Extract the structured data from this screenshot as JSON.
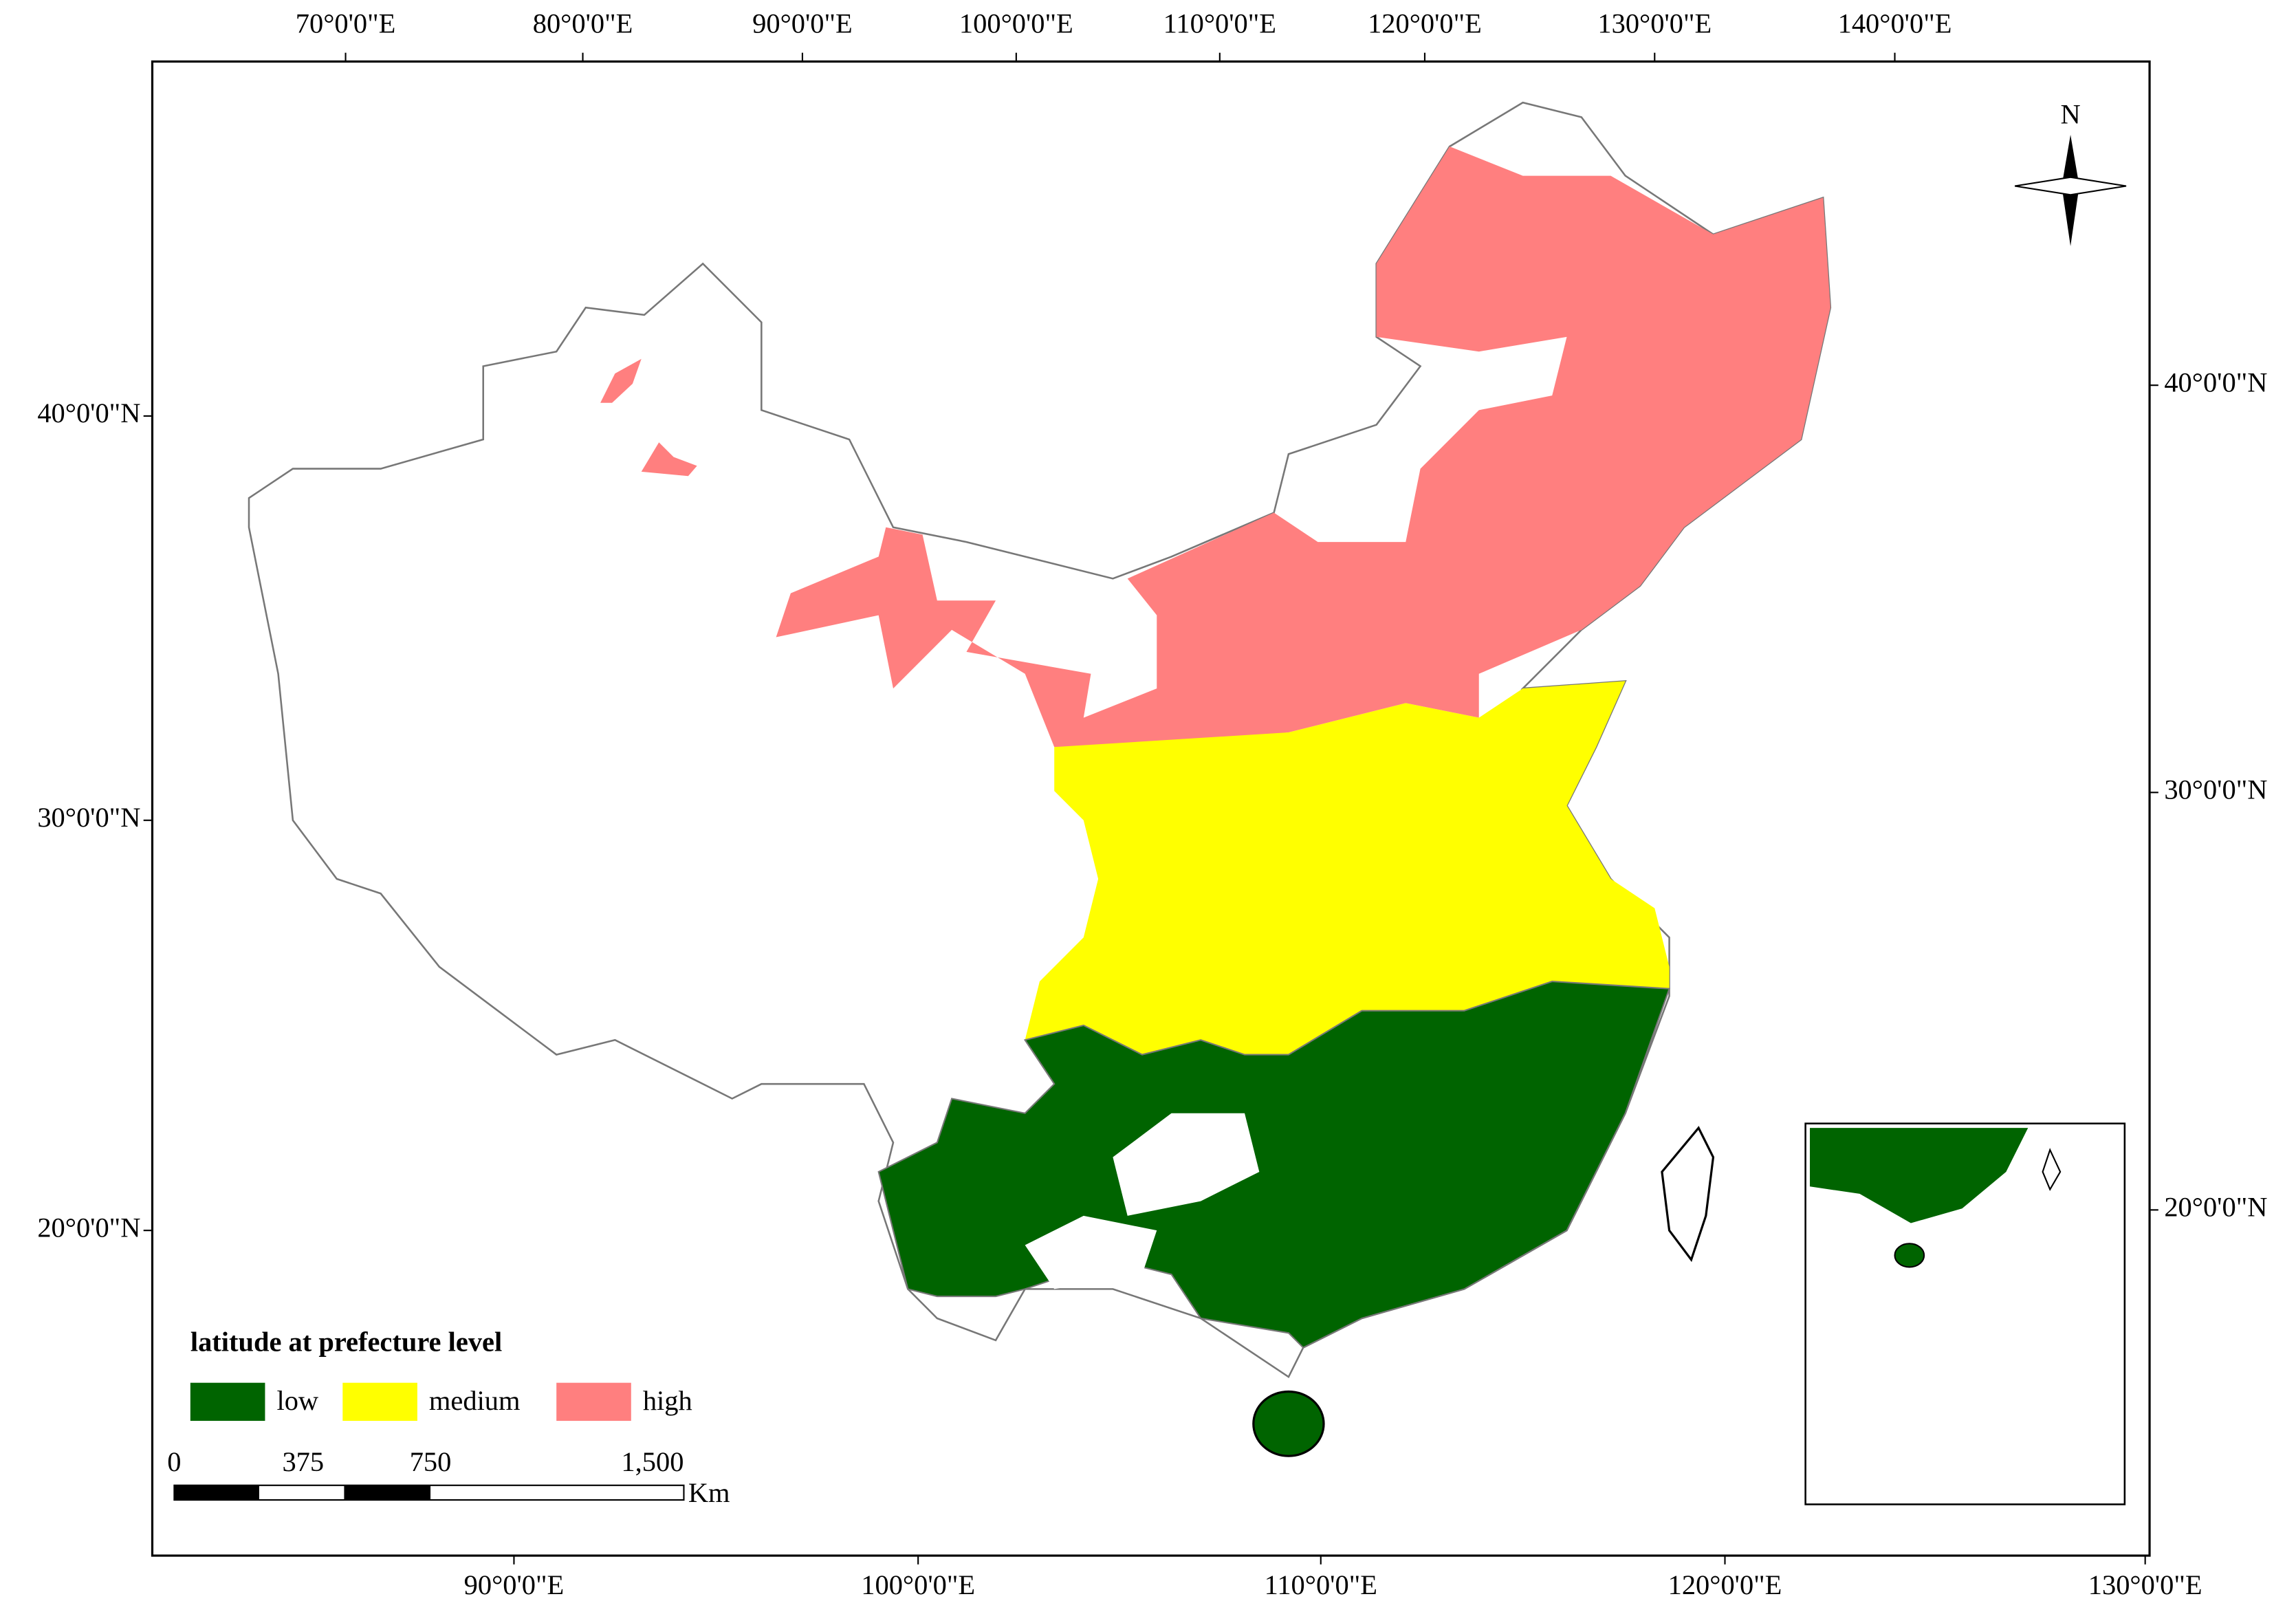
{
  "map": {
    "top_labels": [
      "70°0'0\"E",
      "80°0'0\"E",
      "90°0'0\"E",
      "100°0'0\"E",
      "110°0'0\"E",
      "120°0'0\"E",
      "130°0'0\"E",
      "140°0'0\"E"
    ],
    "bottom_labels": [
      "90°0'0\"E",
      "100°0'0\"E",
      "110°0'0\"E",
      "120°0'0\"E",
      "130°0'0\"E"
    ],
    "left_labels": [
      "40°0'0\"N",
      "30°0'0\"N",
      "20°0'0\"N"
    ],
    "right_labels": [
      "40°0'0\"N",
      "30°0'0\"N",
      "20°0'0\"N"
    ],
    "north": "N",
    "legend": {
      "title": "latitude at prefecture level",
      "items": [
        "low",
        "medium",
        "high"
      ]
    },
    "scale_bar": {
      "labels": [
        "0",
        "375",
        "750",
        "1,500"
      ],
      "unit": "Km"
    }
  }
}
